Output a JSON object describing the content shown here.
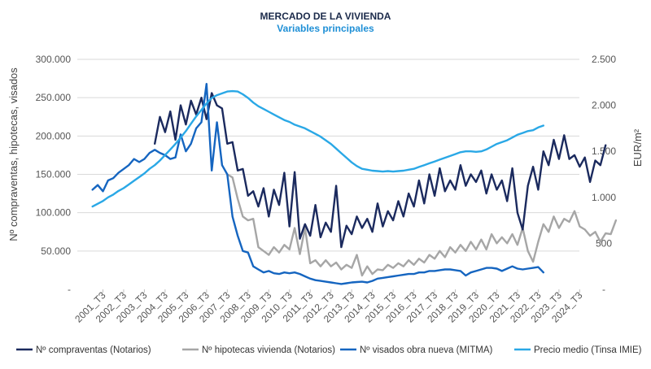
{
  "chart_data": {
    "type": "line",
    "title": "MERCADO DE LA VIVIENDA",
    "subtitle": "Variables principales",
    "ylabel_left": "Nº compraventas, hipotecas, visados",
    "ylabel_right": "EUR/m²",
    "ylim_left": [
      0,
      300000
    ],
    "ylim_right": [
      0,
      2500
    ],
    "yticks_left": [
      "-",
      "50.000",
      "100.000",
      "150.000",
      "200.000",
      "250.000",
      "300.000"
    ],
    "yticks_right": [
      "-",
      "500",
      "1.000",
      "1.500",
      "2.000",
      "2.500"
    ],
    "x_start": "2001_T1",
    "x_labels": [
      "2001_T3",
      "2002_T3",
      "2003_T3",
      "2004_T3",
      "2005_T3",
      "2006_T3",
      "2007_T3",
      "2008_T3",
      "2009_T3",
      "2010_T3",
      "2011_T3",
      "2012_T3",
      "2013_T3",
      "2014_T3",
      "2015_T3",
      "2016_T3",
      "2017_T3",
      "2018_T3",
      "2019_T3",
      "2020_T3",
      "2021_T3",
      "2022_T3",
      "2023_T3",
      "2024_T3"
    ],
    "legend_position": "bottom",
    "series": [
      {
        "name": "Nº compraventas (Notarios)",
        "axis": "left",
        "color": "#1b2a5e",
        "start_index": 12,
        "values": [
          190000,
          225000,
          205000,
          232000,
          195000,
          240000,
          215000,
          246000,
          228000,
          250000,
          222000,
          256000,
          240000,
          236000,
          190000,
          192000,
          155000,
          157000,
          122000,
          128000,
          108000,
          132000,
          95000,
          130000,
          110000,
          152000,
          82000,
          153000,
          66000,
          85000,
          70000,
          110000,
          68000,
          87000,
          75000,
          135000,
          55000,
          83000,
          72000,
          95000,
          80000,
          92000,
          75000,
          112000,
          82000,
          102000,
          90000,
          115000,
          95000,
          125000,
          108000,
          142000,
          112000,
          150000,
          122000,
          158000,
          128000,
          142000,
          130000,
          162000,
          135000,
          150000,
          140000,
          155000,
          125000,
          150000,
          130000,
          142000,
          115000,
          158000,
          100000,
          78000,
          135000,
          160000,
          130000,
          180000,
          162000,
          195000,
          170000,
          201000,
          170000,
          175000,
          160000,
          172000,
          140000,
          168000,
          162000,
          188000
        ]
      },
      {
        "name": "Nº hipotecas vivienda (Notarios)",
        "axis": "left",
        "color": "#a6a6a6",
        "start_index": 26,
        "values": [
          150000,
          146000,
          118000,
          95000,
          90000,
          92000,
          55000,
          50000,
          45000,
          55000,
          48000,
          58000,
          52000,
          80000,
          46000,
          80000,
          34000,
          38000,
          30000,
          38000,
          30000,
          35000,
          26000,
          32000,
          28000,
          45000,
          18000,
          30000,
          20000,
          26000,
          25000,
          32000,
          28000,
          34000,
          30000,
          38000,
          32000,
          40000,
          35000,
          45000,
          40000,
          50000,
          42000,
          55000,
          48000,
          58000,
          50000,
          62000,
          52000,
          65000,
          52000,
          72000,
          60000,
          68000,
          60000,
          72000,
          58000,
          80000,
          50000,
          36000,
          62000,
          85000,
          75000,
          95000,
          80000,
          92000,
          88000,
          102000,
          82000,
          78000,
          70000,
          75000,
          62000,
          73000,
          72000,
          90000
        ]
      },
      {
        "name": "Nº visados obra nueva (MITMA)",
        "axis": "left",
        "color": "#1565c0",
        "start_index": 0,
        "values": [
          130000,
          136000,
          128000,
          142000,
          145000,
          152000,
          157000,
          162000,
          170000,
          166000,
          170000,
          178000,
          182000,
          178000,
          175000,
          170000,
          172000,
          202000,
          180000,
          190000,
          210000,
          218000,
          268000,
          155000,
          218000,
          162000,
          150000,
          95000,
          70000,
          50000,
          48000,
          30000,
          26000,
          22000,
          24000,
          21000,
          20000,
          22000,
          21000,
          22000,
          20000,
          17000,
          14000,
          12000,
          11000,
          10000,
          9000,
          8000,
          7000,
          8000,
          9000,
          9500,
          10000,
          9000,
          11000,
          14000,
          15000,
          16000,
          17000,
          18000,
          19000,
          20000,
          20000,
          22000,
          22000,
          24000,
          24000,
          25000,
          26000,
          26000,
          25000,
          24000,
          18000,
          22000,
          24000,
          26000,
          28000,
          28000,
          27000,
          24000,
          27000,
          30000,
          27000,
          26000,
          27000,
          28000,
          29000,
          22000
        ]
      },
      {
        "name": "Precio medio (Tinsa IMIE)",
        "axis": "right",
        "color": "#2aa8e6",
        "start_index": 0,
        "values": [
          900,
          930,
          960,
          1000,
          1030,
          1070,
          1100,
          1140,
          1180,
          1220,
          1260,
          1310,
          1350,
          1400,
          1460,
          1520,
          1580,
          1650,
          1720,
          1800,
          1880,
          1950,
          2020,
          2080,
          2110,
          2130,
          2150,
          2155,
          2150,
          2120,
          2080,
          2030,
          1990,
          1960,
          1930,
          1900,
          1870,
          1840,
          1820,
          1790,
          1770,
          1750,
          1720,
          1690,
          1660,
          1620,
          1580,
          1530,
          1480,
          1430,
          1380,
          1340,
          1310,
          1300,
          1290,
          1285,
          1280,
          1285,
          1280,
          1285,
          1290,
          1300,
          1310,
          1330,
          1350,
          1370,
          1390,
          1410,
          1430,
          1450,
          1470,
          1490,
          1500,
          1500,
          1495,
          1500,
          1520,
          1550,
          1580,
          1600,
          1620,
          1650,
          1680,
          1700,
          1720,
          1730,
          1760,
          1780
        ]
      }
    ]
  }
}
